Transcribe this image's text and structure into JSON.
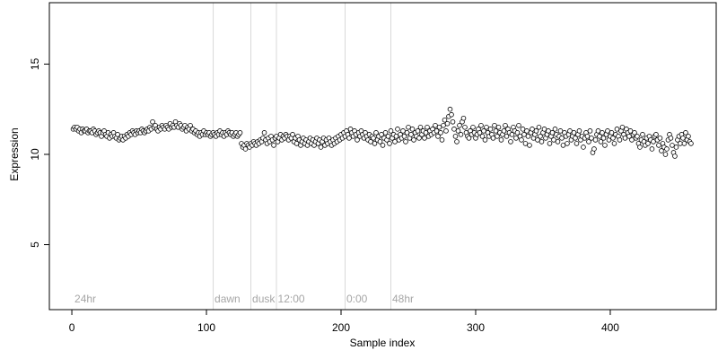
{
  "chart_data": {
    "type": "scatter",
    "xlabel": "Sample index",
    "ylabel": "Expression",
    "xlim": [
      -16.7,
      478.7
    ],
    "ylim": [
      1.4,
      18.4
    ],
    "xticks": [
      0,
      100,
      200,
      300,
      400
    ],
    "yticks": [
      5,
      10,
      15
    ],
    "vlines": [
      105,
      133,
      152,
      203,
      237
    ],
    "vline_color": "#d9d9d9",
    "annotations": [
      {
        "text": "24hr",
        "x": 2,
        "y": 2
      },
      {
        "text": "dawn",
        "x": 106,
        "y": 2
      },
      {
        "text": "dusk",
        "x": 134,
        "y": 2
      },
      {
        "text": "12:00",
        "x": 153,
        "y": 2
      },
      {
        "text": "0:00",
        "x": 204,
        "y": 2
      },
      {
        "text": "48hr",
        "x": 238,
        "y": 2
      }
    ],
    "color": "#ffffff",
    "edge_color": "#000000",
    "x": [
      1,
      2,
      3,
      4,
      5,
      6,
      7,
      8,
      9,
      10,
      11,
      12,
      13,
      14,
      15,
      16,
      17,
      18,
      19,
      20,
      21,
      22,
      23,
      24,
      25,
      26,
      27,
      28,
      29,
      30,
      31,
      32,
      33,
      34,
      35,
      36,
      37,
      38,
      39,
      40,
      41,
      42,
      43,
      44,
      45,
      46,
      47,
      48,
      49,
      50,
      51,
      52,
      53,
      54,
      55,
      56,
      57,
      58,
      59,
      60,
      61,
      62,
      63,
      64,
      65,
      66,
      67,
      68,
      69,
      70,
      71,
      72,
      73,
      74,
      75,
      76,
      77,
      78,
      79,
      80,
      81,
      82,
      83,
      84,
      85,
      86,
      87,
      88,
      89,
      90,
      91,
      92,
      93,
      94,
      95,
      96,
      97,
      98,
      99,
      100,
      101,
      102,
      103,
      104,
      105,
      106,
      107,
      108,
      109,
      110,
      111,
      112,
      113,
      114,
      115,
      116,
      117,
      118,
      119,
      120,
      121,
      122,
      123,
      124,
      125,
      126,
      127,
      128,
      129,
      130,
      131,
      132,
      133,
      134,
      135,
      136,
      137,
      138,
      139,
      140,
      141,
      142,
      143,
      144,
      145,
      146,
      147,
      148,
      149,
      150,
      151,
      152,
      153,
      154,
      155,
      156,
      157,
      158,
      159,
      160,
      161,
      162,
      163,
      164,
      165,
      166,
      167,
      168,
      169,
      170,
      171,
      172,
      173,
      174,
      175,
      176,
      177,
      178,
      179,
      180,
      181,
      182,
      183,
      184,
      185,
      186,
      187,
      188,
      189,
      190,
      191,
      192,
      193,
      194,
      195,
      196,
      197,
      198,
      199,
      200,
      201,
      202,
      203,
      204,
      205,
      206,
      207,
      208,
      209,
      210,
      211,
      212,
      213,
      214,
      215,
      216,
      217,
      218,
      219,
      220,
      221,
      222,
      223,
      224,
      225,
      226,
      227,
      228,
      229,
      230,
      231,
      232,
      233,
      234,
      235,
      236,
      237,
      238,
      239,
      240,
      241,
      242,
      243,
      244,
      245,
      246,
      247,
      248,
      249,
      250,
      251,
      252,
      253,
      254,
      255,
      256,
      257,
      258,
      259,
      260,
      261,
      262,
      263,
      264,
      265,
      266,
      267,
      268,
      269,
      270,
      271,
      272,
      273,
      274,
      275,
      276,
      277,
      278,
      279,
      280,
      281,
      282,
      283,
      284,
      285,
      286,
      287,
      288,
      289,
      290,
      291,
      292,
      293,
      294,
      295,
      296,
      297,
      298,
      299,
      300,
      301,
      302,
      303,
      304,
      305,
      306,
      307,
      308,
      309,
      310,
      311,
      312,
      313,
      314,
      315,
      316,
      317,
      318,
      319,
      320,
      321,
      322,
      323,
      324,
      325,
      326,
      327,
      328,
      329,
      330,
      331,
      332,
      333,
      334,
      335,
      336,
      337,
      338,
      339,
      340,
      341,
      342,
      343,
      344,
      345,
      346,
      347,
      348,
      349,
      350,
      351,
      352,
      353,
      354,
      355,
      356,
      357,
      358,
      359,
      360,
      361,
      362,
      363,
      364,
      365,
      366,
      367,
      368,
      369,
      370,
      371,
      372,
      373,
      374,
      375,
      376,
      377,
      378,
      379,
      380,
      381,
      382,
      383,
      384,
      385,
      386,
      387,
      388,
      389,
      390,
      391,
      392,
      393,
      394,
      395,
      396,
      397,
      398,
      399,
      400,
      401,
      402,
      403,
      404,
      405,
      406,
      407,
      408,
      409,
      410,
      411,
      412,
      413,
      414,
      415,
      416,
      417,
      418,
      419,
      420,
      421,
      422,
      423,
      424,
      425,
      426,
      427,
      428,
      429,
      430,
      431,
      432,
      433,
      434,
      435,
      436,
      437,
      438,
      439,
      440,
      441,
      442,
      443,
      444,
      445,
      446,
      447,
      448,
      449,
      450,
      451,
      452,
      453,
      454,
      455,
      456,
      457,
      458,
      459,
      460
    ],
    "values": [
      11.4,
      11.5,
      11.4,
      11.5,
      11.3,
      11.4,
      11.2,
      11.4,
      11.3,
      11.3,
      11.4,
      11.2,
      11.3,
      11.3,
      11.2,
      11.4,
      11.3,
      11.1,
      11.2,
      11.3,
      11.2,
      11.0,
      11.2,
      11.3,
      11.1,
      11.0,
      11.2,
      10.9,
      11.1,
      11.0,
      11.2,
      11.0,
      10.9,
      11.1,
      10.8,
      10.9,
      11.0,
      10.8,
      11.0,
      10.9,
      11.1,
      11.0,
      11.2,
      11.1,
      11.3,
      11.2,
      11.1,
      11.3,
      11.2,
      11.3,
      11.2,
      11.4,
      11.3,
      11.2,
      11.3,
      11.4,
      11.3,
      11.5,
      11.4,
      11.8,
      11.5,
      11.6,
      11.4,
      11.3,
      11.5,
      11.4,
      11.6,
      11.5,
      11.4,
      11.6,
      11.5,
      11.4,
      11.7,
      11.5,
      11.6,
      11.5,
      11.8,
      11.6,
      11.5,
      11.7,
      11.6,
      11.4,
      11.5,
      11.6,
      11.3,
      11.5,
      11.4,
      11.6,
      11.3,
      11.4,
      11.2,
      11.3,
      11.1,
      11.2,
      11.0,
      11.2,
      11.1,
      11.3,
      11.1,
      11.2,
      11.1,
      11.2,
      11.0,
      11.1,
      11.2,
      11.1,
      11.0,
      11.2,
      11.1,
      11.3,
      11.1,
      11.2,
      11.0,
      11.2,
      11.1,
      11.3,
      11.2,
      11.1,
      11.2,
      11.0,
      11.1,
      11.2,
      11.0,
      11.1,
      11.2,
      10.6,
      10.4,
      10.5,
      10.3,
      10.6,
      10.5,
      10.4,
      10.6,
      10.5,
      10.7,
      10.6,
      10.5,
      10.7,
      10.6,
      10.8,
      10.7,
      10.9,
      11.2,
      10.8,
      10.6,
      10.9,
      10.7,
      11.0,
      10.8,
      10.5,
      10.9,
      11.0,
      10.7,
      10.9,
      11.1,
      10.8,
      11.0,
      10.9,
      11.1,
      11.0,
      10.8,
      11.0,
      10.9,
      11.1,
      10.7,
      10.9,
      10.6,
      11.0,
      10.8,
      10.5,
      10.7,
      10.9,
      10.6,
      10.8,
      10.5,
      10.7,
      10.9,
      10.6,
      10.8,
      10.5,
      10.7,
      10.9,
      10.6,
      10.8,
      10.4,
      10.7,
      10.9,
      10.5,
      10.8,
      10.6,
      10.9,
      10.7,
      10.5,
      10.8,
      10.6,
      10.9,
      10.7,
      11.0,
      10.8,
      11.1,
      10.9,
      11.2,
      11.0,
      11.3,
      11.1,
      10.9,
      11.4,
      11.2,
      11.0,
      11.3,
      11.1,
      10.8,
      11.2,
      11.0,
      11.3,
      11.1,
      10.9,
      11.2,
      11.0,
      10.8,
      11.1,
      10.7,
      11.0,
      10.9,
      10.6,
      11.2,
      10.8,
      11.0,
      10.7,
      11.1,
      10.5,
      10.9,
      11.2,
      10.8,
      11.0,
      10.6,
      11.3,
      10.9,
      11.1,
      10.7,
      11.0,
      11.4,
      10.8,
      11.1,
      10.9,
      11.3,
      11.0,
      10.7,
      11.2,
      11.5,
      10.9,
      11.1,
      11.4,
      10.8,
      11.2,
      11.0,
      11.3,
      10.9,
      11.5,
      11.1,
      11.3,
      10.9,
      11.2,
      11.5,
      11.0,
      11.3,
      11.1,
      11.4,
      11.2,
      11.6,
      11.3,
      11.0,
      11.5,
      11.2,
      10.8,
      11.6,
      11.9,
      11.3,
      11.7,
      12.1,
      12.5,
      12.2,
      11.8,
      11.4,
      11.0,
      10.7,
      11.3,
      11.6,
      11.1,
      11.8,
      12.0,
      11.5,
      11.2,
      11.0,
      10.9,
      11.3,
      11.1,
      11.5,
      11.2,
      10.9,
      11.1,
      11.4,
      11.2,
      11.6,
      11.0,
      11.3,
      10.8,
      11.5,
      11.2,
      11.0,
      11.4,
      11.1,
      10.9,
      11.6,
      11.3,
      11.0,
      11.5,
      11.2,
      10.8,
      11.1,
      11.3,
      11.6,
      11.0,
      11.4,
      11.2,
      10.7,
      11.1,
      11.5,
      11.3,
      10.9,
      11.2,
      11.6,
      11.0,
      10.8,
      11.4,
      11.1,
      10.6,
      11.3,
      11.0,
      10.5,
      11.2,
      11.4,
      10.9,
      11.1,
      11.3,
      10.8,
      11.5,
      11.0,
      10.7,
      11.2,
      11.4,
      10.9,
      11.1,
      11.3,
      10.6,
      11.0,
      11.2,
      10.8,
      11.4,
      11.1,
      10.7,
      11.0,
      11.3,
      10.9,
      10.5,
      11.2,
      11.0,
      10.6,
      11.1,
      11.3,
      10.8,
      11.0,
      11.2,
      10.9,
      10.6,
      11.1,
      11.3,
      10.8,
      11.0,
      10.4,
      10.9,
      11.2,
      11.0,
      10.7,
      11.3,
      10.9,
      10.1,
      10.3,
      10.8,
      11.1,
      11.3,
      11.0,
      10.7,
      11.2,
      10.9,
      10.5,
      11.1,
      11.3,
      10.8,
      11.0,
      11.2,
      10.9,
      10.6,
      11.1,
      11.4,
      11.0,
      10.8,
      11.3,
      11.5,
      11.1,
      10.9,
      11.4,
      11.2,
      11.0,
      11.3,
      10.8,
      11.1,
      11.2,
      10.9,
      11.0,
      10.6,
      10.4,
      10.8,
      11.1,
      10.7,
      10.5,
      10.9,
      10.6,
      11.0,
      10.8,
      10.3,
      10.7,
      11.0,
      11.1,
      10.8,
      10.5,
      10.9,
      10.2,
      10.6,
      10.4,
      10.0,
      10.3,
      10.8,
      11.1,
      10.9,
      10.5,
      10.1,
      9.9,
      10.4,
      10.8,
      11.0,
      10.6,
      11.1,
      10.9,
      10.6,
      11.2,
      10.8,
      11.0,
      10.7,
      10.6
    ]
  }
}
